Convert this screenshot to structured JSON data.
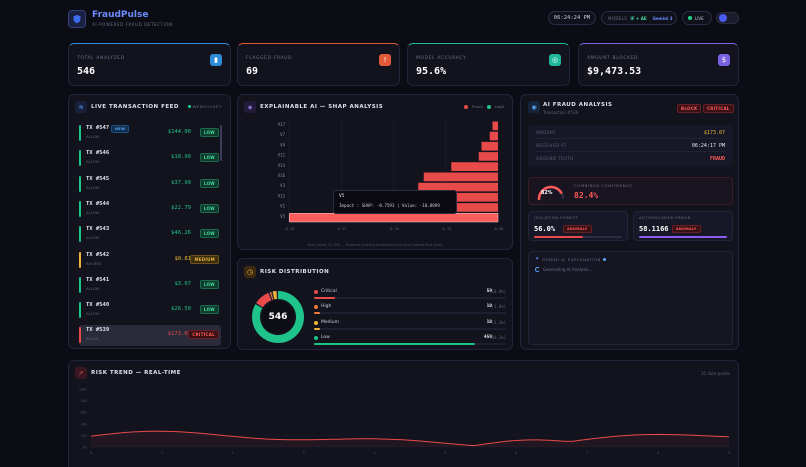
{
  "brand": {
    "name": "FraudPulse",
    "tagline": "AI-POWERED FRAUD DETECTION"
  },
  "header": {
    "clock": "06:24:24 PM",
    "models_label": "MODELS",
    "models_value": "IF + AE",
    "gemini": "Gemini 3",
    "live": "LIVE"
  },
  "stats": [
    {
      "label": "TOTAL ANALYZED",
      "value": "546",
      "color": "#2e8bd6",
      "icon": "bar-chart-icon"
    },
    {
      "label": "FLAGGED FRAUD",
      "value": "69",
      "color": "#e05a3a",
      "icon": "warning-icon"
    },
    {
      "label": "MODEL ACCURACY",
      "value": "95.6%",
      "color": "#1fb89a",
      "icon": "target-icon"
    },
    {
      "label": "AMOUNT BLOCKED",
      "value": "$9,473.53",
      "color": "#7a63e0",
      "icon": "dollar-icon"
    }
  ],
  "feed": {
    "title": "LIVE TRANSACTION FEED",
    "status": "WEBSOCKET",
    "items": [
      {
        "id": "TX #547",
        "new": "NEW",
        "status": "ALLOW",
        "amount": "$144.00",
        "badge": "LOW",
        "level": "low"
      },
      {
        "id": "TX #546",
        "status": "ALLOW",
        "amount": "$18.99",
        "badge": "LOW",
        "level": "low"
      },
      {
        "id": "TX #545",
        "status": "ALLOW",
        "amount": "$37.99",
        "badge": "LOW",
        "level": "low"
      },
      {
        "id": "TX #544",
        "status": "ALLOW",
        "amount": "$22.79",
        "badge": "LOW",
        "level": "low"
      },
      {
        "id": "TX #543",
        "status": "ALLOW",
        "amount": "$46.26",
        "badge": "LOW",
        "level": "low"
      },
      {
        "id": "TX #542",
        "status": "REVIEW",
        "amount": "$0.81",
        "badge": "MEDIUM",
        "level": "med"
      },
      {
        "id": "TX #541",
        "status": "ALLOW",
        "amount": "$3.07",
        "badge": "LOW",
        "level": "low"
      },
      {
        "id": "TX #540",
        "status": "ALLOW",
        "amount": "$26.50",
        "badge": "LOW",
        "level": "low"
      },
      {
        "id": "TX #539",
        "status": "BLOCK",
        "amount": "$173.07",
        "badge": "CRITICAL",
        "level": "crit"
      }
    ]
  },
  "shap": {
    "title": "EXPLAINABLE AI — SHAP ANALYSIS",
    "legend": [
      "Fraud",
      "Legit"
    ],
    "features": [
      "V17",
      "V7",
      "V4",
      "V11",
      "V14",
      "V16",
      "V3",
      "V12",
      "V1",
      "V5"
    ],
    "values": [
      -0.02,
      -0.03,
      -0.06,
      -0.07,
      -0.17,
      -0.27,
      -0.29,
      -0.31,
      -0.33,
      -0.7593
    ],
    "ticks": [
      "-0.76",
      "-0.57",
      "-0.38",
      "-0.19",
      "-0.00"
    ],
    "tooltip_feature": "V5",
    "tooltip_text": "Impact : SHAP: -0.7593 | Value: -10.8899",
    "footnote": "Base value: $1.000 — Features pushing prediction from base toward final score"
  },
  "risk": {
    "title": "RISK DISTRIBUTION",
    "total": "546",
    "rows": [
      {
        "name": "Critical",
        "count": "59",
        "pct": "(10.8%)",
        "color": "#e84a4a",
        "fraction": 0.108
      },
      {
        "name": "High",
        "count": "10",
        "pct": "(1.8%)",
        "color": "#f07a3a",
        "fraction": 0.018
      },
      {
        "name": "Medium",
        "count": "18",
        "pct": "(3.3%)",
        "color": "#f0b43a",
        "fraction": 0.033
      },
      {
        "name": "Low",
        "count": "459",
        "pct": "(84.1%)",
        "color": "#1fc48a",
        "fraction": 0.841
      }
    ]
  },
  "analysis": {
    "title": "AI FRAUD ANALYSIS",
    "subtitle": "Transaction #539",
    "tag1": "BLOCK",
    "tag2": "CRITICAL",
    "kv": [
      {
        "k": "AMOUNT",
        "v": "$173.07",
        "color": "#f0b43a"
      },
      {
        "k": "RECEIVED AT",
        "v": "06:24:17 PM",
        "color": "#e5e7f2"
      },
      {
        "k": "GROUND TRUTH",
        "v": "FRAUD",
        "color": "#ff5a5a"
      }
    ],
    "gauge_value": "82%",
    "gauge_fraction": 0.824,
    "conf_label": "COMBINED CONFIDENCE",
    "conf_value": "82.4%",
    "iso_label": "ISOLATION FOREST",
    "iso_value": "56.0%",
    "iso_badge": "ANOMALY",
    "iso_fraction": 0.56,
    "ae_label": "AUTOENCODER ERROR",
    "ae_value": "58.1166",
    "ae_badge": "ANOMALY",
    "gemini_title": "GEMINI AI EXPLANATION",
    "gemini_text": "Generating AI Analysis..."
  },
  "trend": {
    "title": "RISK TREND — REAL-TIME",
    "right": "31 data points",
    "yticks": [
      "100%",
      "80%",
      "60%",
      "40%",
      "20%",
      "0%"
    ],
    "xticks": [
      "0",
      "1",
      "2",
      "3",
      "4",
      "5",
      "6",
      "7",
      "8",
      "9"
    ]
  },
  "chart_data": {
    "type": "bar",
    "title": "EXPLAINABLE AI — SHAP ANALYSIS",
    "categories": [
      "V17",
      "V7",
      "V4",
      "V11",
      "V14",
      "V16",
      "V3",
      "V12",
      "V1",
      "V5"
    ],
    "values": [
      -0.02,
      -0.03,
      -0.06,
      -0.07,
      -0.17,
      -0.27,
      -0.29,
      -0.31,
      -0.33,
      -0.7593
    ],
    "xlim": [
      -0.76,
      0
    ]
  }
}
